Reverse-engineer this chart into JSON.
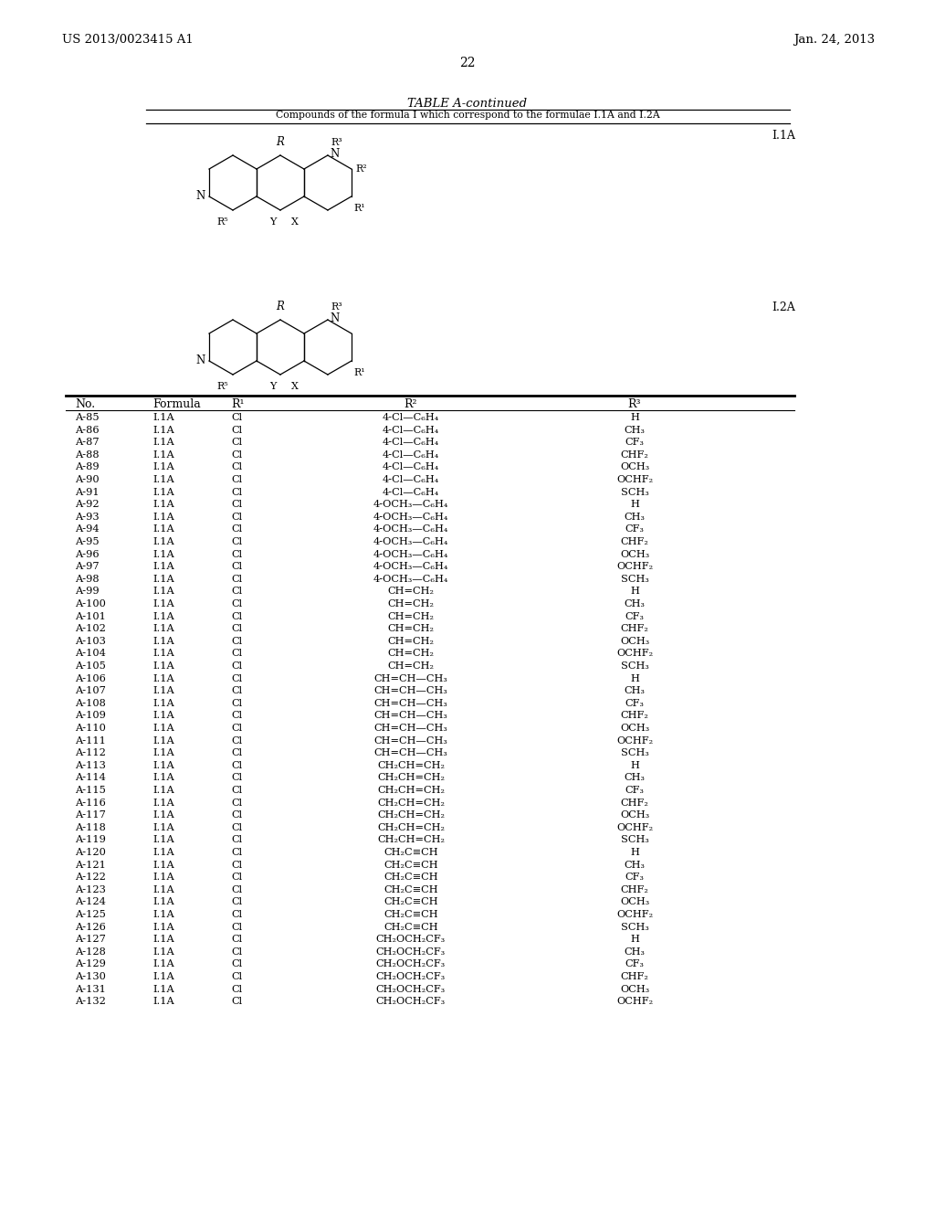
{
  "patent_number": "US 2013/0023415 A1",
  "date": "Jan. 24, 2013",
  "page_number": "22",
  "table_title": "TABLE A-continued",
  "table_subtitle": "Compounds of the formula I which correspond to the formulae I.1A and I.2A",
  "formula_label_1": "I.1A",
  "formula_label_2": "I.2A",
  "col_headers": [
    "No.",
    "Formula",
    "R¹",
    "R²",
    "R³"
  ],
  "rows": [
    [
      "A-85",
      "I.1A",
      "Cl",
      "4-Cl—C₆H₄",
      "H"
    ],
    [
      "A-86",
      "I.1A",
      "Cl",
      "4-Cl—C₆H₄",
      "CH₃"
    ],
    [
      "A-87",
      "I.1A",
      "Cl",
      "4-Cl—C₆H₄",
      "CF₃"
    ],
    [
      "A-88",
      "I.1A",
      "Cl",
      "4-Cl—C₆H₄",
      "CHF₂"
    ],
    [
      "A-89",
      "I.1A",
      "Cl",
      "4-Cl—C₆H₄",
      "OCH₃"
    ],
    [
      "A-90",
      "I.1A",
      "Cl",
      "4-Cl—C₆H₄",
      "OCHF₂"
    ],
    [
      "A-91",
      "I.1A",
      "Cl",
      "4-Cl—C₆H₄",
      "SCH₃"
    ],
    [
      "A-92",
      "I.1A",
      "Cl",
      "4-OCH₃—C₆H₄",
      "H"
    ],
    [
      "A-93",
      "I.1A",
      "Cl",
      "4-OCH₃—C₆H₄",
      "CH₃"
    ],
    [
      "A-94",
      "I.1A",
      "Cl",
      "4-OCH₃—C₆H₄",
      "CF₃"
    ],
    [
      "A-95",
      "I.1A",
      "Cl",
      "4-OCH₃—C₆H₄",
      "CHF₂"
    ],
    [
      "A-96",
      "I.1A",
      "Cl",
      "4-OCH₃—C₆H₄",
      "OCH₃"
    ],
    [
      "A-97",
      "I.1A",
      "Cl",
      "4-OCH₃—C₆H₄",
      "OCHF₂"
    ],
    [
      "A-98",
      "I.1A",
      "Cl",
      "4-OCH₃—C₆H₄",
      "SCH₃"
    ],
    [
      "A-99",
      "I.1A",
      "Cl",
      "CH=CH₂",
      "H"
    ],
    [
      "A-100",
      "I.1A",
      "Cl",
      "CH=CH₂",
      "CH₃"
    ],
    [
      "A-101",
      "I.1A",
      "Cl",
      "CH=CH₂",
      "CF₃"
    ],
    [
      "A-102",
      "I.1A",
      "Cl",
      "CH=CH₂",
      "CHF₂"
    ],
    [
      "A-103",
      "I.1A",
      "Cl",
      "CH=CH₂",
      "OCH₃"
    ],
    [
      "A-104",
      "I.1A",
      "Cl",
      "CH=CH₂",
      "OCHF₂"
    ],
    [
      "A-105",
      "I.1A",
      "Cl",
      "CH=CH₂",
      "SCH₃"
    ],
    [
      "A-106",
      "I.1A",
      "Cl",
      "CH=CH—CH₃",
      "H"
    ],
    [
      "A-107",
      "I.1A",
      "Cl",
      "CH=CH—CH₃",
      "CH₃"
    ],
    [
      "A-108",
      "I.1A",
      "Cl",
      "CH=CH—CH₃",
      "CF₃"
    ],
    [
      "A-109",
      "I.1A",
      "Cl",
      "CH=CH—CH₃",
      "CHF₂"
    ],
    [
      "A-110",
      "I.1A",
      "Cl",
      "CH=CH—CH₃",
      "OCH₃"
    ],
    [
      "A-111",
      "I.1A",
      "Cl",
      "CH=CH—CH₃",
      "OCHF₂"
    ],
    [
      "A-112",
      "I.1A",
      "Cl",
      "CH=CH—CH₃",
      "SCH₃"
    ],
    [
      "A-113",
      "I.1A",
      "Cl",
      "CH₂CH=CH₂",
      "H"
    ],
    [
      "A-114",
      "I.1A",
      "Cl",
      "CH₂CH=CH₂",
      "CH₃"
    ],
    [
      "A-115",
      "I.1A",
      "Cl",
      "CH₂CH=CH₂",
      "CF₃"
    ],
    [
      "A-116",
      "I.1A",
      "Cl",
      "CH₂CH=CH₂",
      "CHF₂"
    ],
    [
      "A-117",
      "I.1A",
      "Cl",
      "CH₂CH=CH₂",
      "OCH₃"
    ],
    [
      "A-118",
      "I.1A",
      "Cl",
      "CH₂CH=CH₂",
      "OCHF₂"
    ],
    [
      "A-119",
      "I.1A",
      "Cl",
      "CH₂CH=CH₂",
      "SCH₃"
    ],
    [
      "A-120",
      "I.1A",
      "Cl",
      "CH₂C≡CH",
      "H"
    ],
    [
      "A-121",
      "I.1A",
      "Cl",
      "CH₂C≡CH",
      "CH₃"
    ],
    [
      "A-122",
      "I.1A",
      "Cl",
      "CH₂C≡CH",
      "CF₃"
    ],
    [
      "A-123",
      "I.1A",
      "Cl",
      "CH₂C≡CH",
      "CHF₂"
    ],
    [
      "A-124",
      "I.1A",
      "Cl",
      "CH₂C≡CH",
      "OCH₃"
    ],
    [
      "A-125",
      "I.1A",
      "Cl",
      "CH₂C≡CH",
      "OCHF₂"
    ],
    [
      "A-126",
      "I.1A",
      "Cl",
      "CH₂C≡CH",
      "SCH₃"
    ],
    [
      "A-127",
      "I.1A",
      "Cl",
      "CH₂OCH₂CF₃",
      "H"
    ],
    [
      "A-128",
      "I.1A",
      "Cl",
      "CH₂OCH₂CF₃",
      "CH₃"
    ],
    [
      "A-129",
      "I.1A",
      "Cl",
      "CH₂OCH₂CF₃",
      "CF₃"
    ],
    [
      "A-130",
      "I.1A",
      "Cl",
      "CH₂OCH₂CF₃",
      "CHF₂"
    ],
    [
      "A-131",
      "I.1A",
      "Cl",
      "CH₂OCH₂CF₃",
      "OCH₃"
    ],
    [
      "A-132",
      "I.1A",
      "Cl",
      "CH₂OCH₂CF₃",
      "OCHF₂"
    ]
  ]
}
